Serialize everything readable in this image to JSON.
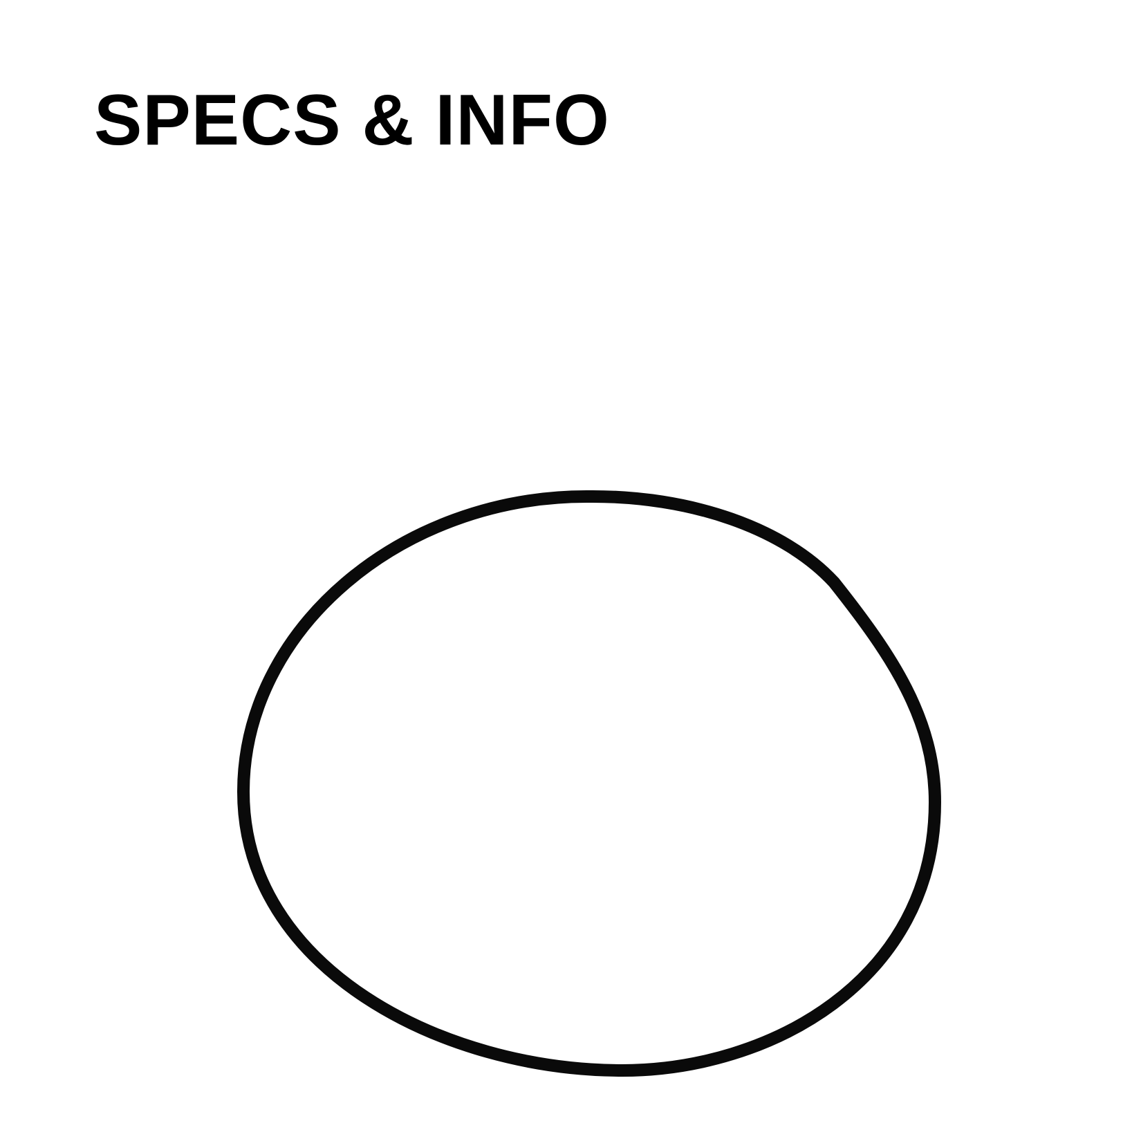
{
  "page": {
    "background_color": "#ffffff",
    "text_color": "#000000"
  },
  "header": {
    "title": "SPECS & INFO"
  },
  "product": {
    "image_subject": "o-ring",
    "ring_color": "#0a0a0a"
  }
}
